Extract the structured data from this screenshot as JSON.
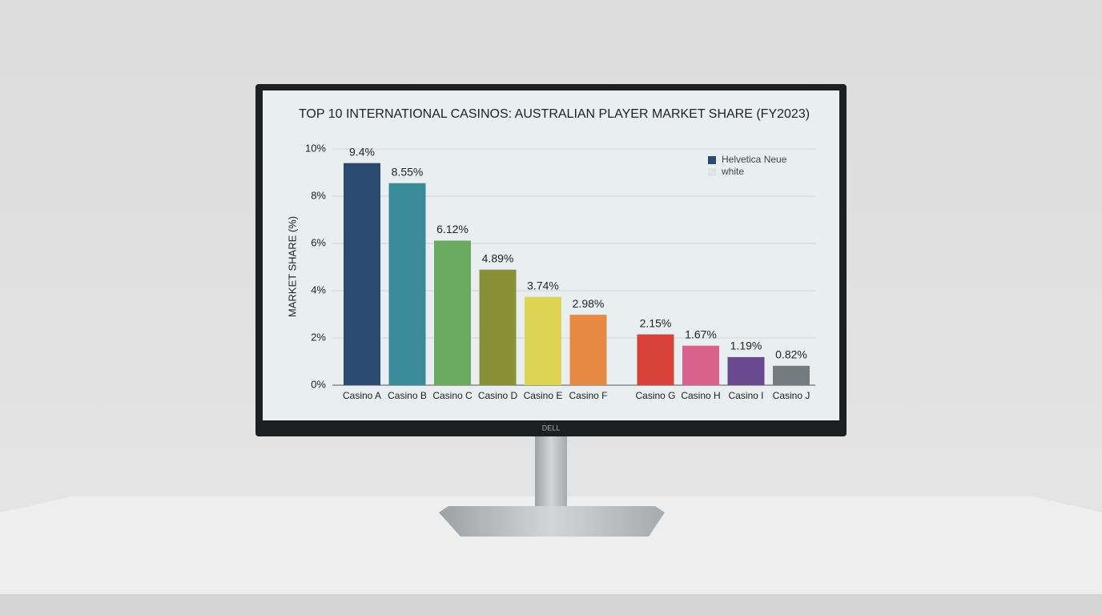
{
  "chart_data": {
    "type": "bar",
    "title": "TOP 10 INTERNATIONAL CASINOS: AUSTRALIAN PLAYER MARKET SHARE (FY2023)",
    "y_label": "MARKET SHARE (%)",
    "categories": [
      "Casino A",
      "Casino B",
      "Casino C",
      "Casino D",
      "Casino E",
      "Casino F",
      "Casino G",
      "Casino H",
      "Casino I",
      "Casino J"
    ],
    "values": [
      9.4,
      8.55,
      6.12,
      4.89,
      3.74,
      2.98,
      2.15,
      1.67,
      1.19,
      0.82
    ],
    "value_labels": [
      "9.4%",
      "8.55%",
      "6.12%",
      "4.89%",
      "3.74%",
      "2.98%",
      "2.15%",
      "1.67%",
      "1.19%",
      "0.82%"
    ],
    "colors": [
      "#2b4a6f",
      "#3a8a9a",
      "#6aaa60",
      "#8a9035",
      "#dcd452",
      "#e68a45",
      "#d9423a",
      "#d9628a",
      "#6a4a8e",
      "#737d80"
    ],
    "ylim": [
      0,
      10
    ],
    "yticks": [
      {
        "value": 0,
        "label": "0%"
      },
      {
        "value": 2,
        "label": "2%"
      },
      {
        "value": 4,
        "label": "4%"
      },
      {
        "value": 6,
        "label": "6%"
      },
      {
        "value": 8,
        "label": "8%"
      },
      {
        "value": 10,
        "label": "10%"
      }
    ],
    "grid": true,
    "legend": [
      {
        "name": "Helvetica Neue",
        "color": "#2b4a6f"
      },
      {
        "name": "white",
        "color": "#dde3e6"
      }
    ]
  },
  "device": {
    "brand": "DELL"
  }
}
